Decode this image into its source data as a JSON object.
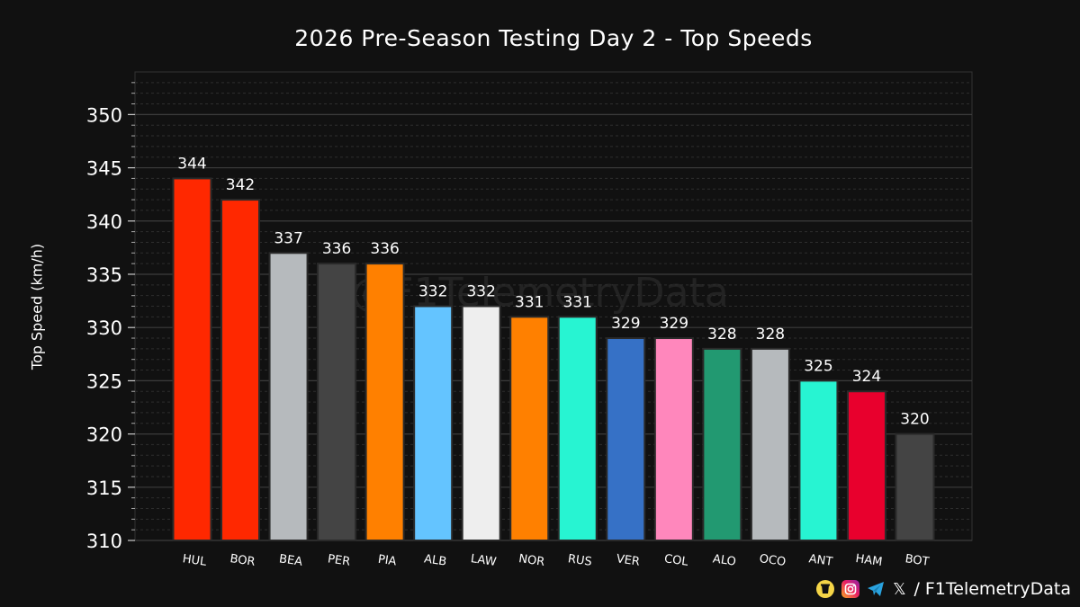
{
  "chart_data": {
    "type": "bar",
    "title": "2026 Pre-Season Testing Day 2 - Top Speeds",
    "ylabel": "Top Speed (km/h)",
    "ylim": [
      310,
      354
    ],
    "yticks": [
      310,
      315,
      320,
      325,
      330,
      335,
      340,
      345,
      350
    ],
    "grid": true,
    "watermark": "@F1TelemetryData",
    "categories": [
      "HUL",
      "BOR",
      "BEA",
      "PER",
      "PIA",
      "ALB",
      "LAW",
      "NOR",
      "RUS",
      "VER",
      "COL",
      "ALO",
      "OCO",
      "ANT",
      "HAM",
      "BOT"
    ],
    "values": [
      344,
      342,
      337,
      336,
      336,
      332,
      332,
      331,
      331,
      329,
      329,
      328,
      328,
      325,
      324,
      320
    ],
    "colors": [
      "#ff2800",
      "#ff2800",
      "#b6babd",
      "#444444",
      "#ff8000",
      "#64c4ff",
      "#eeeeee",
      "#ff8000",
      "#27f4d2",
      "#3671c6",
      "#ff87bc",
      "#229971",
      "#b6babd",
      "#27f4d2",
      "#e8002d",
      "#444444"
    ]
  },
  "footer": {
    "handle": "/ F1TelemetryData",
    "icons": [
      "buymeacoffee-icon",
      "instagram-icon",
      "telegram-icon",
      "x-icon"
    ]
  }
}
